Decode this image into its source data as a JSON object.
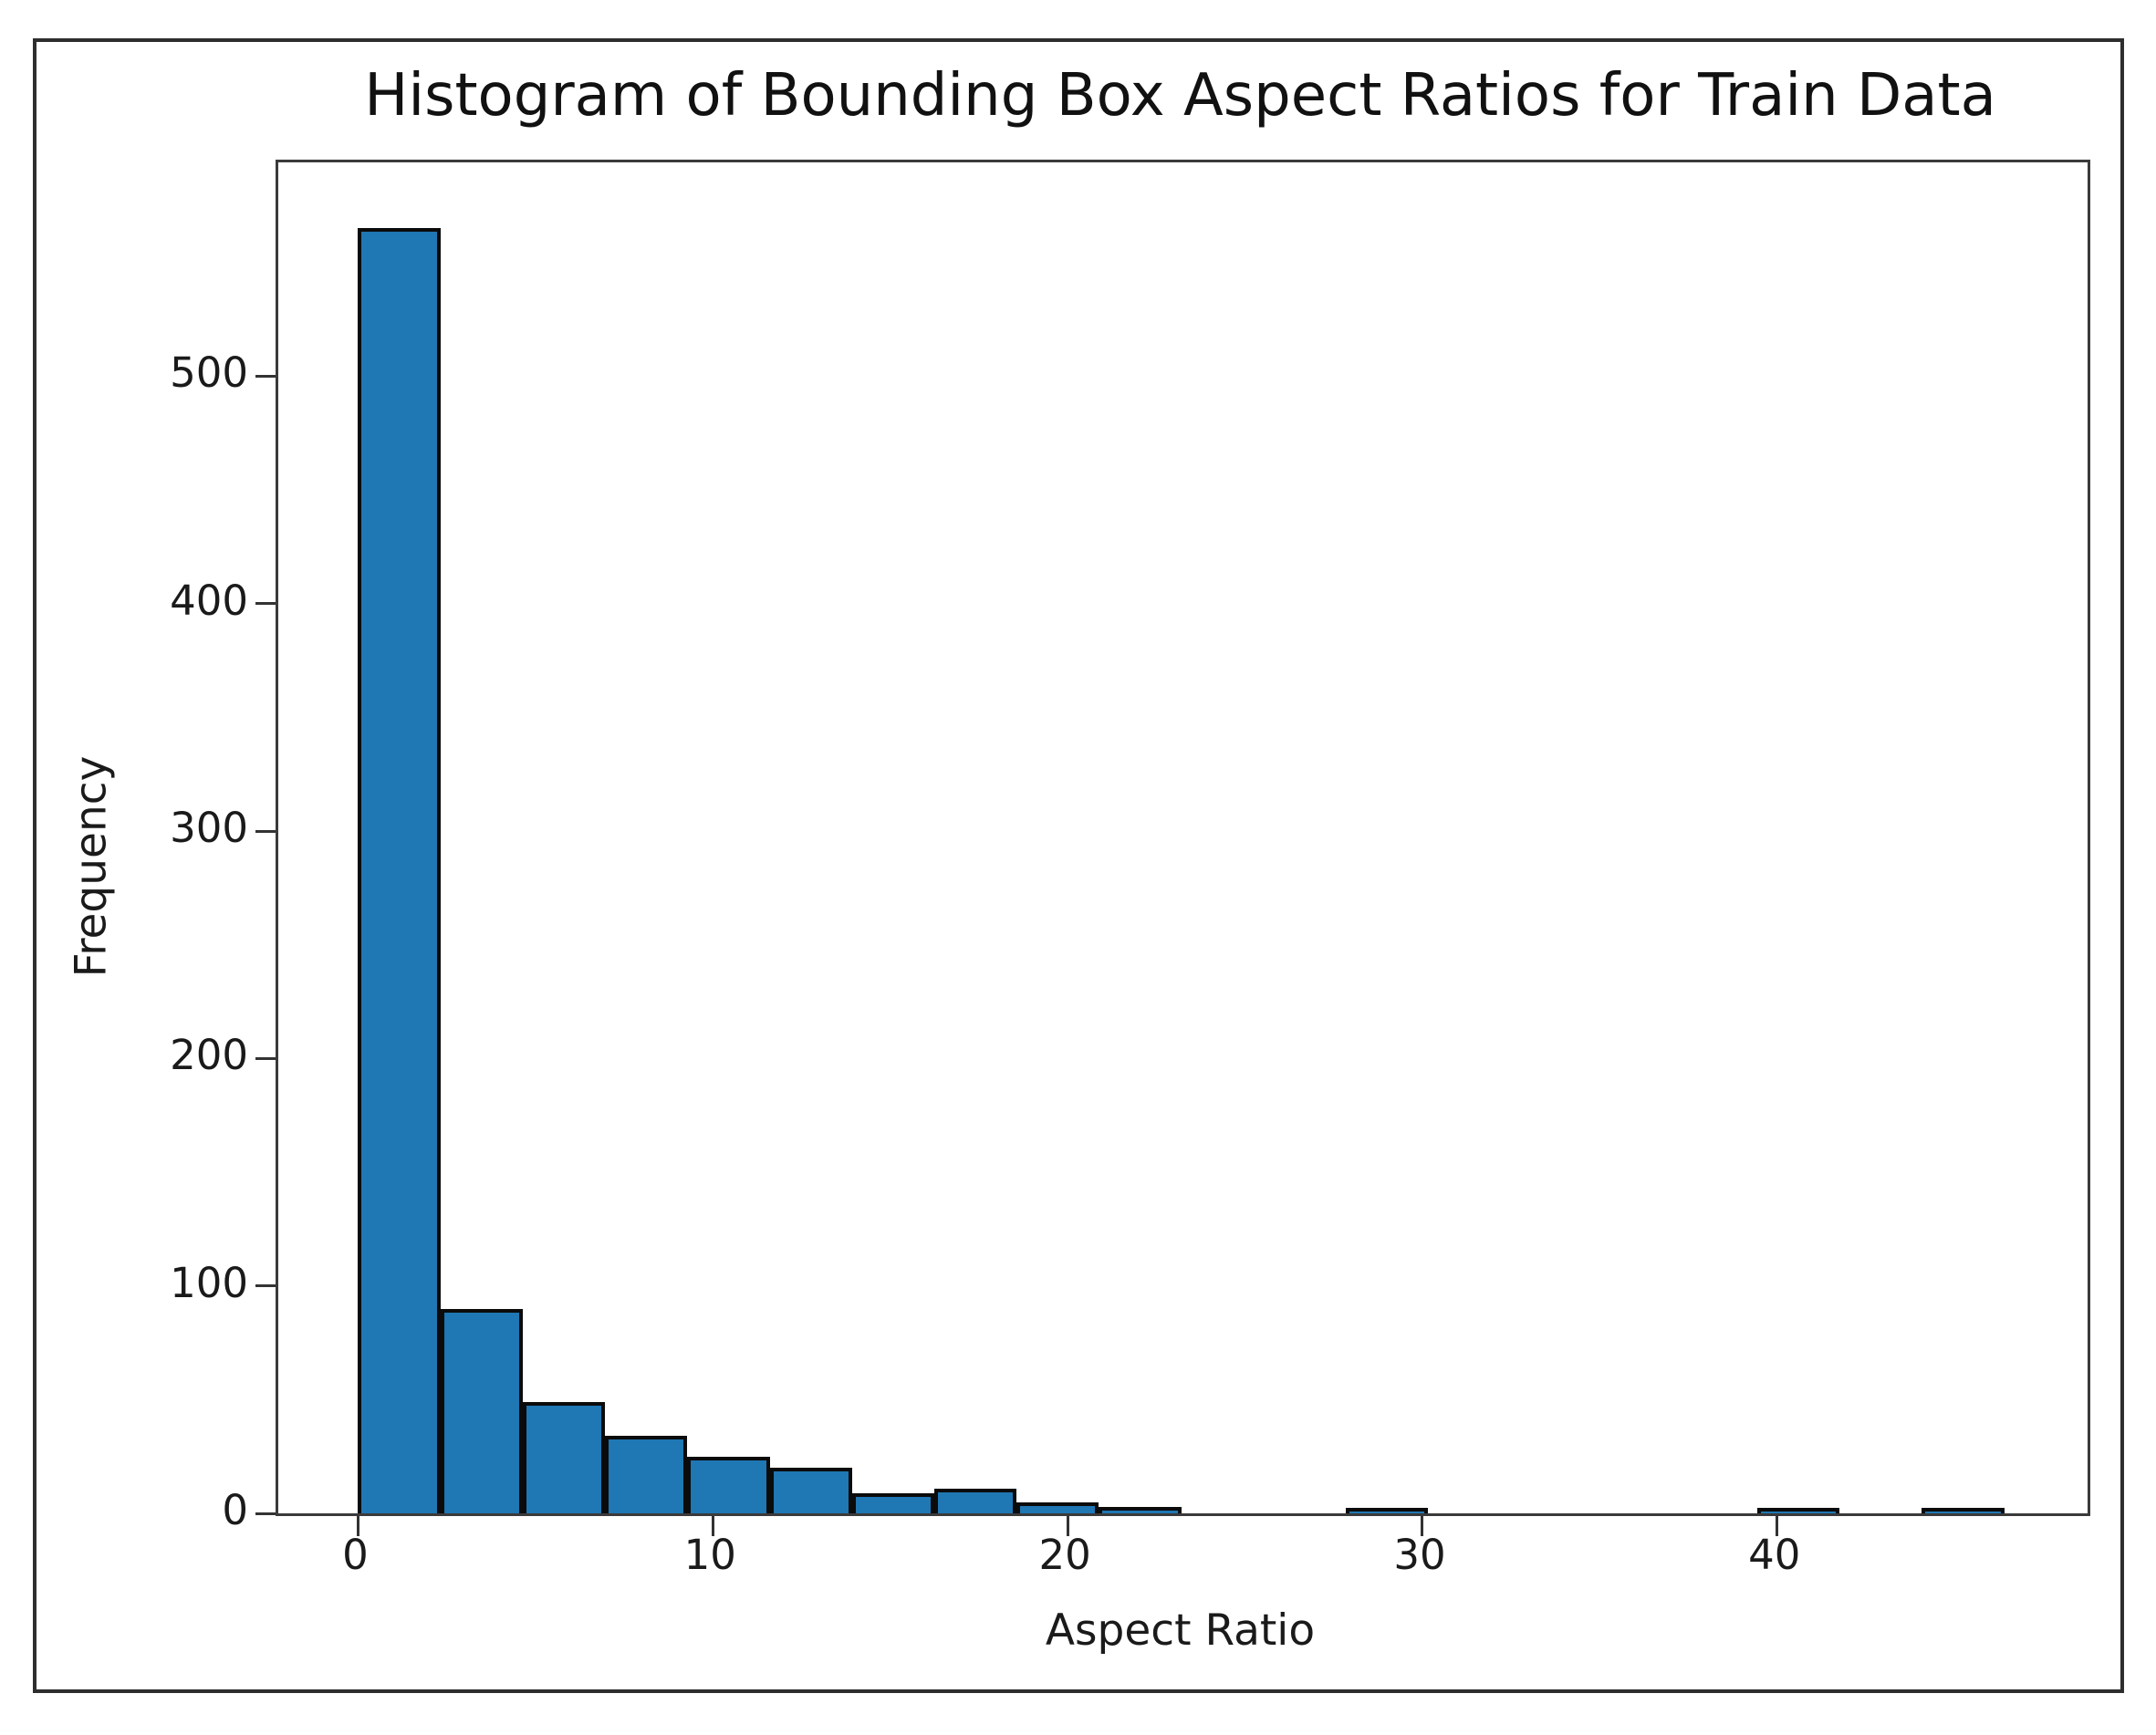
{
  "chart_data": {
    "type": "bar",
    "subtype": "histogram",
    "title": "Histogram of Bounding Box Aspect Ratios for Train Data",
    "xlabel": "Aspect Ratio",
    "ylabel": "Frequency",
    "bin_edges": [
      0,
      2.32,
      4.64,
      6.96,
      9.28,
      11.6,
      13.92,
      16.24,
      18.56,
      20.88,
      23.2,
      25.52,
      27.84,
      30.16,
      32.48,
      34.8,
      37.12,
      39.44,
      41.76,
      44.08,
      46.4
    ],
    "counts": [
      565,
      90,
      49,
      34,
      25,
      20,
      9,
      11,
      5,
      3,
      0,
      0,
      2,
      0,
      0,
      0,
      0,
      2,
      0,
      2
    ],
    "x_ticks": [
      0,
      10,
      20,
      30,
      40
    ],
    "y_ticks": [
      0,
      100,
      200,
      300,
      400,
      500
    ],
    "xlim": [
      -2.25,
      48.75
    ],
    "ylim": [
      0,
      594
    ],
    "grid": false,
    "legend": null,
    "bar_color": "#1f77b4",
    "bar_edge_color": "#0b0b0b"
  }
}
